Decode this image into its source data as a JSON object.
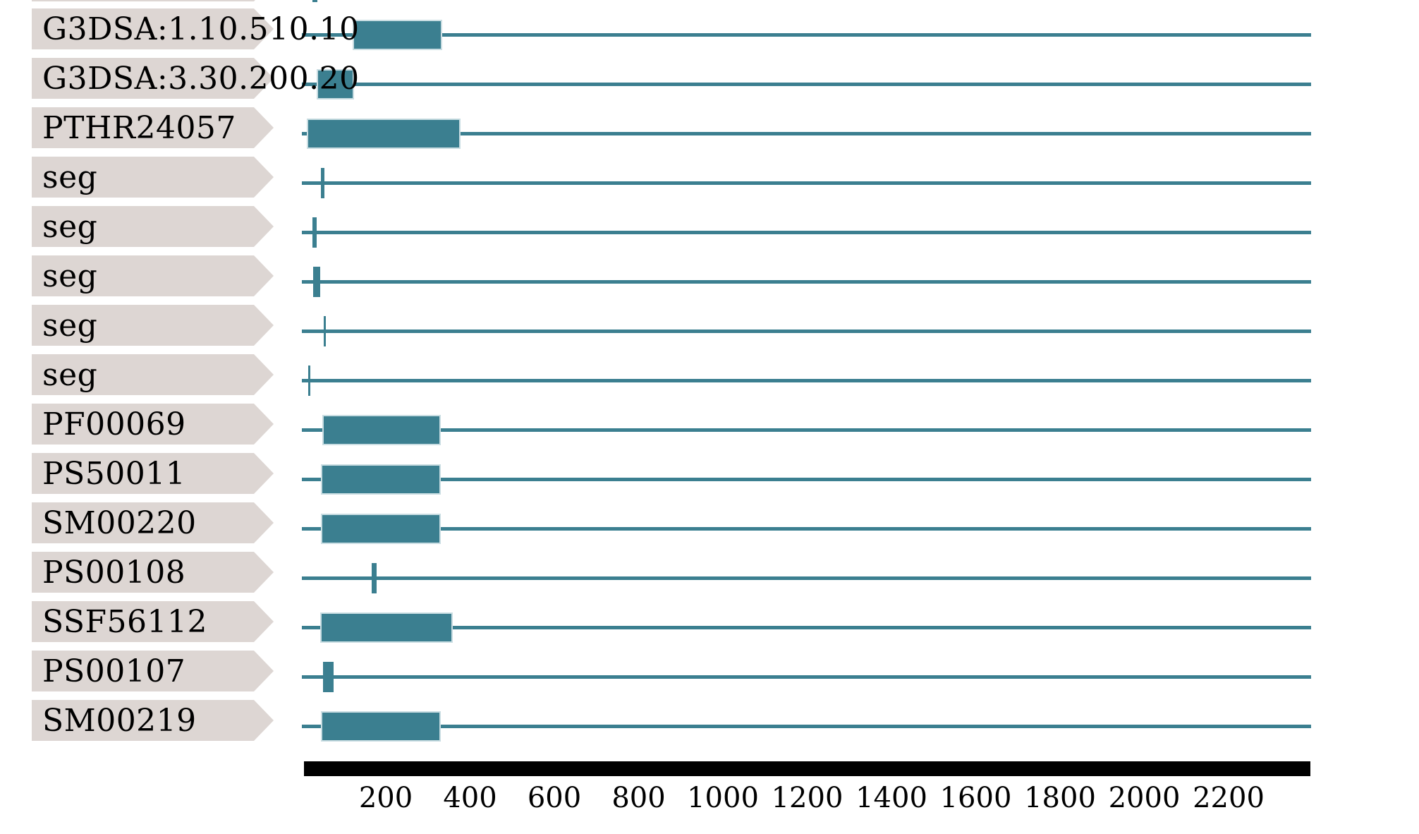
{
  "chart_data": {
    "type": "protein-domain-tracks",
    "description": "Protein sequence feature/domain architecture plot: one track per signature match, boxes and ticks mark matched regions along the sequence",
    "sequence_length": 2396,
    "axis": {
      "tick_values": [
        200,
        400,
        600,
        800,
        1000,
        1200,
        1400,
        1600,
        1800,
        2000,
        2200
      ],
      "bar_start": 6,
      "bar_end": 2394,
      "grid": false
    },
    "tracks": [
      {
        "label": "",
        "note": "row cut off at top edge of screenshot",
        "features": [
          {
            "start": 26,
            "end": 38,
            "shape": "tick"
          }
        ]
      },
      {
        "label": "G3DSA:1.10.510.10",
        "features": [
          {
            "start": 121,
            "end": 334,
            "shape": "box"
          }
        ]
      },
      {
        "label": "G3DSA:3.30.200.20",
        "features": [
          {
            "start": 36,
            "end": 125,
            "shape": "box"
          }
        ]
      },
      {
        "label": "PTHR24057",
        "features": [
          {
            "start": 13,
            "end": 377,
            "shape": "box"
          }
        ]
      },
      {
        "label": "seg",
        "features": [
          {
            "start": 46,
            "end": 54,
            "shape": "tick"
          }
        ]
      },
      {
        "label": "seg",
        "features": [
          {
            "start": 26,
            "end": 36,
            "shape": "tick"
          }
        ]
      },
      {
        "label": "seg",
        "features": [
          {
            "start": 28,
            "end": 44,
            "shape": "tick"
          }
        ]
      },
      {
        "label": "seg",
        "features": [
          {
            "start": 53,
            "end": 58,
            "shape": "tick"
          }
        ]
      },
      {
        "label": "seg",
        "features": [
          {
            "start": 16,
            "end": 21,
            "shape": "tick"
          }
        ]
      },
      {
        "label": "PF00069",
        "features": [
          {
            "start": 49,
            "end": 331,
            "shape": "box"
          }
        ]
      },
      {
        "label": "PS50011",
        "features": [
          {
            "start": 46,
            "end": 331,
            "shape": "box"
          }
        ]
      },
      {
        "label": "SM00220",
        "features": [
          {
            "start": 46,
            "end": 331,
            "shape": "box"
          }
        ]
      },
      {
        "label": "PS00108",
        "features": [
          {
            "start": 167,
            "end": 178,
            "shape": "tick"
          }
        ]
      },
      {
        "label": "SSF56112",
        "features": [
          {
            "start": 44,
            "end": 359,
            "shape": "box"
          }
        ]
      },
      {
        "label": "PS00107",
        "features": [
          {
            "start": 51,
            "end": 76,
            "shape": "tick"
          }
        ]
      },
      {
        "label": "SM00219",
        "features": [
          {
            "start": 46,
            "end": 331,
            "shape": "box"
          }
        ]
      }
    ]
  },
  "colors": {
    "feature_fill": "#3b7f90",
    "feature_edge": "#c9dde2",
    "sequence_line": "#3b7f90",
    "label_background": "#ddd6d3",
    "axis_bar": "#000000",
    "text": "#000000",
    "page_background": "#ffffff"
  }
}
